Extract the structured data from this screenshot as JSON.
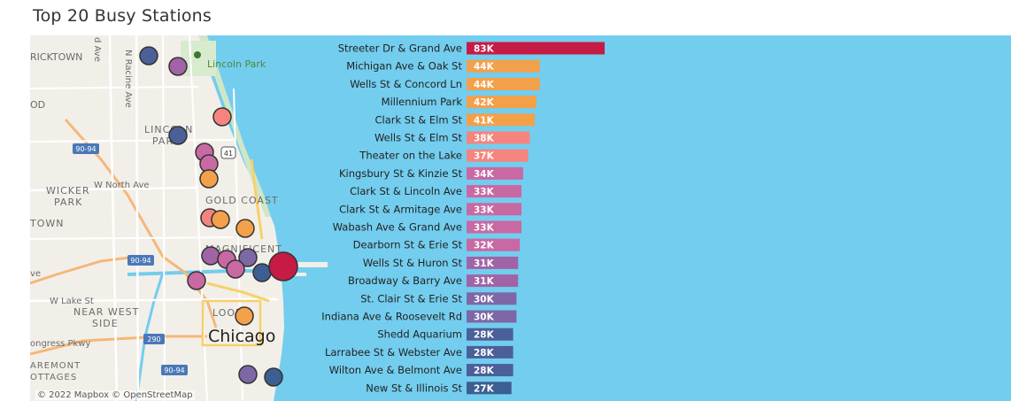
{
  "page": {
    "title": "Top 20 Busy Stations"
  },
  "map": {
    "attribution": "© 2022 Mapbox © OpenStreetMap",
    "water_color": "#73cdee",
    "land_color": "#f2efe9",
    "labels": {
      "bricktown": "RICKTOWN",
      "lincoln_park_area": "LINCOLN",
      "lincoln_park_area2": "PARK",
      "lincoln_park": "Lincoln Park",
      "wicker": "WICKER",
      "wicker2": "PARK",
      "town": "TOWN",
      "od": "OD",
      "gold_coast": "GOLD COAST",
      "magnificent": "MAGNIFICENT",
      "near_west": "NEAR WEST",
      "side": "SIDE",
      "loop": "LOOP",
      "chicago": "Chicago",
      "n_racine": "N Racine Ave",
      "d_ave": "d Ave",
      "w_north": "W North Ave",
      "w_lake": "W Lake St",
      "congress": "ongress Pkwy",
      "fremont": "AREMONT",
      "cottages": "OTTAGES",
      "ve": "ve",
      "i90_1": "90-94",
      "i90_2": "90-94",
      "i90_3": "90-94",
      "i290": "290",
      "us41": "41"
    }
  },
  "chart_data": {
    "type": "bar",
    "orientation": "horizontal",
    "title": "Top 20 Busy Stations",
    "xlim": [
      0,
      83000
    ],
    "categories": [
      "Streeter Dr & Grand Ave",
      "Michigan Ave & Oak St",
      "Wells St & Concord Ln",
      "Millennium Park",
      "Clark St & Elm St",
      "Wells St & Elm St",
      "Theater on the Lake",
      "Kingsbury St & Kinzie St",
      "Clark St & Lincoln Ave",
      "Clark St & Armitage Ave",
      "Wabash Ave & Grand Ave",
      "Dearborn St & Erie St",
      "Wells St & Huron St",
      "Broadway & Barry Ave",
      "St. Clair St & Erie St",
      "Indiana Ave & Roosevelt Rd",
      "Shedd Aquarium",
      "Larrabee St & Webster Ave",
      "Wilton Ave & Belmont Ave",
      "New St & Illinois St"
    ],
    "values": [
      83000,
      44000,
      44000,
      42000,
      41000,
      38000,
      37000,
      34000,
      33000,
      33000,
      33000,
      32000,
      31000,
      31000,
      30000,
      30000,
      28000,
      28000,
      28000,
      27000
    ],
    "labels": [
      "83K",
      "44K",
      "44K",
      "42K",
      "41K",
      "38K",
      "37K",
      "34K",
      "33K",
      "33K",
      "33K",
      "32K",
      "31K",
      "31K",
      "30K",
      "30K",
      "28K",
      "28K",
      "28K",
      "27K"
    ],
    "colors": [
      "#c51b45",
      "#f3a04b",
      "#f3a04b",
      "#f3a04b",
      "#f3a04b",
      "#f6847e",
      "#f6847e",
      "#c869a3",
      "#c869a3",
      "#c869a3",
      "#c869a3",
      "#c869a3",
      "#a064a6",
      "#a064a6",
      "#7e67a6",
      "#7e67a6",
      "#4b5f98",
      "#4b5f98",
      "#4b5f98",
      "#3d5e91"
    ],
    "map_markers": [
      {
        "color": "#4b5f98",
        "size": "small"
      },
      {
        "color": "#a064a6",
        "size": "small"
      },
      {
        "color": "#f6847e",
        "size": "small"
      },
      {
        "color": "#4b5f98",
        "size": "small"
      },
      {
        "color": "#c869a3",
        "size": "small"
      },
      {
        "color": "#c869a3",
        "size": "small"
      },
      {
        "color": "#f3a04b",
        "size": "small"
      },
      {
        "color": "#f6847e",
        "size": "small"
      },
      {
        "color": "#f3a04b",
        "size": "small"
      },
      {
        "color": "#f3a04b",
        "size": "small"
      },
      {
        "color": "#a064a6",
        "size": "small"
      },
      {
        "color": "#c869a3",
        "size": "small"
      },
      {
        "color": "#7e67a6",
        "size": "small"
      },
      {
        "color": "#c869a3",
        "size": "small"
      },
      {
        "color": "#3d5e91",
        "size": "small"
      },
      {
        "color": "#c51b45",
        "size": "large"
      },
      {
        "color": "#c869a3",
        "size": "small"
      },
      {
        "color": "#f3a04b",
        "size": "small"
      },
      {
        "color": "#7e67a6",
        "size": "small"
      },
      {
        "color": "#3d5e91",
        "size": "small"
      }
    ]
  }
}
